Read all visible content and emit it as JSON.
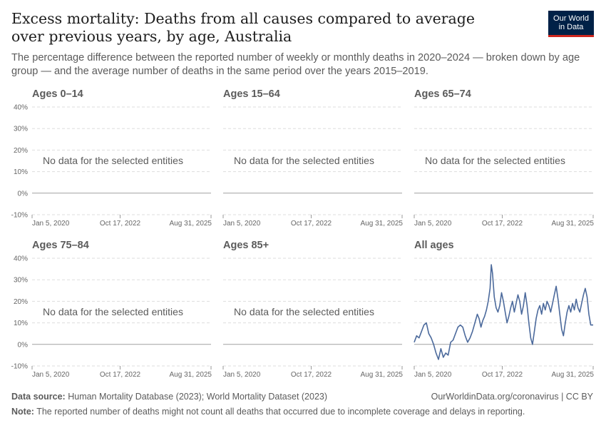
{
  "header": {
    "title": "Excess mortality: Deaths from all causes compared to average over previous years, by age, Australia",
    "subtitle": "The percentage difference between the reported number of weekly or monthly deaths in 2020–2024 — broken down by age group — and the average number of deaths in the same period over the years 2015–2019.",
    "logo_line1": "Our World",
    "logo_line2": "in Data"
  },
  "footer": {
    "source_label": "Data source:",
    "source_text": "Human Mortality Database (2023); World Mortality Dataset (2023)",
    "note_label": "Note:",
    "note_text": "The reported number of deaths might not count all deaths that occurred due to incomplete coverage and delays in reporting.",
    "link": "OurWorldinData.org/coronavirus | CC BY"
  },
  "colors": {
    "series": "#4c6a9c",
    "grid": "#dddddd",
    "zero_line": "#a1a1a1"
  },
  "chart_data": {
    "type": "line",
    "layout": "small-multiples",
    "y_ticks": [
      "-10%",
      "0%",
      "10%",
      "20%",
      "30%",
      "40%"
    ],
    "ylim": [
      -10,
      40
    ],
    "x_ticks": [
      "Jan 5, 2020",
      "Oct 17, 2022",
      "Aug 31, 2025"
    ],
    "xlim": [
      "2020-01-05",
      "2025-08-31"
    ],
    "no_data_text": "No data for the selected entities",
    "panels": [
      {
        "title": "Ages 0–14",
        "has_data": false
      },
      {
        "title": "Ages 15–64",
        "has_data": false
      },
      {
        "title": "Ages 65–74",
        "has_data": false
      },
      {
        "title": "Ages 75–84",
        "has_data": false
      },
      {
        "title": "Ages 85+",
        "has_data": false
      },
      {
        "title": "All ages",
        "has_data": true,
        "series": [
          {
            "values": [
              [
                "2020-01-05",
                1
              ],
              [
                "2020-02-02",
                4
              ],
              [
                "2020-03-01",
                3
              ],
              [
                "2020-03-29",
                6
              ],
              [
                "2020-04-26",
                9
              ],
              [
                "2020-05-24",
                10
              ],
              [
                "2020-06-21",
                5
              ],
              [
                "2020-07-19",
                3
              ],
              [
                "2020-08-16",
                0
              ],
              [
                "2020-09-13",
                -4
              ],
              [
                "2020-10-11",
                -7
              ],
              [
                "2020-11-08",
                -2
              ],
              [
                "2020-12-06",
                -6
              ],
              [
                "2021-01-03",
                -4
              ],
              [
                "2021-01-31",
                -5
              ],
              [
                "2021-02-28",
                1
              ],
              [
                "2021-03-28",
                2
              ],
              [
                "2021-04-25",
                5
              ],
              [
                "2021-05-23",
                8
              ],
              [
                "2021-06-20",
                9
              ],
              [
                "2021-07-18",
                8
              ],
              [
                "2021-08-15",
                4
              ],
              [
                "2021-09-12",
                1
              ],
              [
                "2021-10-10",
                3
              ],
              [
                "2021-11-07",
                6
              ],
              [
                "2021-12-05",
                10
              ],
              [
                "2022-01-02",
                14
              ],
              [
                "2022-01-23",
                12
              ],
              [
                "2022-02-13",
                8
              ],
              [
                "2022-03-06",
                11
              ],
              [
                "2022-03-27",
                13
              ],
              [
                "2022-04-17",
                16
              ],
              [
                "2022-05-08",
                20
              ],
              [
                "2022-05-29",
                26
              ],
              [
                "2022-06-12",
                37
              ],
              [
                "2022-06-26",
                33
              ],
              [
                "2022-07-17",
                22
              ],
              [
                "2022-08-07",
                17
              ],
              [
                "2022-08-28",
                15
              ],
              [
                "2022-09-18",
                18
              ],
              [
                "2022-10-09",
                24
              ],
              [
                "2022-10-30",
                20
              ],
              [
                "2022-11-20",
                15
              ],
              [
                "2022-12-11",
                10
              ],
              [
                "2023-01-01",
                13
              ],
              [
                "2023-01-22",
                17
              ],
              [
                "2023-02-12",
                20
              ],
              [
                "2023-03-05",
                15
              ],
              [
                "2023-03-26",
                19
              ],
              [
                "2023-04-16",
                23
              ],
              [
                "2023-05-07",
                20
              ],
              [
                "2023-05-28",
                14
              ],
              [
                "2023-06-18",
                18
              ],
              [
                "2023-07-09",
                24
              ],
              [
                "2023-07-30",
                18
              ],
              [
                "2023-08-20",
                10
              ],
              [
                "2023-09-10",
                3
              ],
              [
                "2023-10-01",
                0
              ],
              [
                "2023-10-22",
                6
              ],
              [
                "2023-11-12",
                12
              ],
              [
                "2023-12-03",
                16
              ],
              [
                "2023-12-24",
                18
              ],
              [
                "2024-01-14",
                14
              ],
              [
                "2024-02-04",
                19
              ],
              [
                "2024-02-25",
                16
              ],
              [
                "2024-03-17",
                20
              ],
              [
                "2024-04-07",
                18
              ],
              [
                "2024-04-28",
                15
              ],
              [
                "2024-05-19",
                19
              ],
              [
                "2024-06-09",
                23
              ],
              [
                "2024-06-30",
                27
              ],
              [
                "2024-07-21",
                21
              ],
              [
                "2024-08-11",
                14
              ],
              [
                "2024-09-01",
                7
              ],
              [
                "2024-09-22",
                4
              ],
              [
                "2024-10-13",
                10
              ],
              [
                "2024-11-03",
                15
              ],
              [
                "2024-11-24",
                18
              ],
              [
                "2024-12-15",
                15
              ],
              [
                "2025-01-05",
                19
              ],
              [
                "2025-01-26",
                16
              ],
              [
                "2025-02-16",
                21
              ],
              [
                "2025-03-09",
                17
              ],
              [
                "2025-03-30",
                15
              ],
              [
                "2025-04-20",
                19
              ],
              [
                "2025-05-11",
                23
              ],
              [
                "2025-06-01",
                26
              ],
              [
                "2025-06-22",
                22
              ],
              [
                "2025-07-13",
                14
              ],
              [
                "2025-08-03",
                9
              ],
              [
                "2025-08-31",
                9
              ]
            ]
          }
        ]
      }
    ]
  }
}
